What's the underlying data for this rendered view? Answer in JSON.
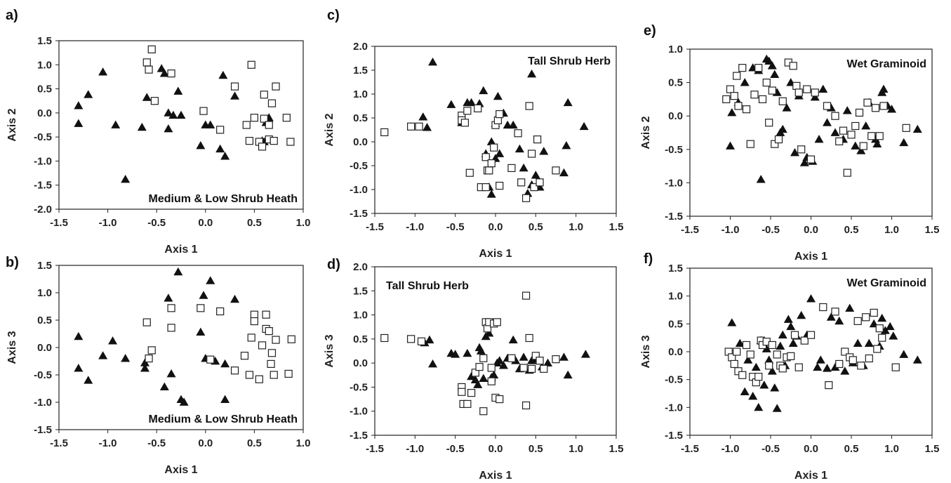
{
  "chart_data": [
    {
      "panel": "a)",
      "type": "scatter",
      "title": "Medium & Low Shrub Heath",
      "xlabel": "Axis 1",
      "ylabel": "Axis 2",
      "xlim": [
        -1.5,
        1.0
      ],
      "ylim": [
        -2.0,
        1.5
      ],
      "xticks": [
        "-1.5",
        "-1.0",
        "-0.5",
        "0.0",
        "0.5",
        "1.0"
      ],
      "yticks": [
        "-2.0",
        "-1.5",
        "-1.0",
        "-0.5",
        "0.0",
        "0.5",
        "1.0",
        "1.5"
      ],
      "title_position": "bottom-right",
      "grid": false,
      "series": [
        {
          "marker": "filled-triangle",
          "x": [
            -1.3,
            -1.2,
            -1.05,
            -1.3,
            -0.92,
            -0.82,
            -0.65,
            -0.6,
            -0.45,
            -0.42,
            -0.38,
            -0.38,
            -0.33,
            -0.28,
            -0.25,
            -0.05,
            0.0,
            0.05,
            0.15,
            0.18,
            0.2,
            0.3,
            0.6,
            0.62,
            0.65,
            0.58
          ],
          "y": [
            0.15,
            0.38,
            0.85,
            -0.22,
            -0.25,
            -1.38,
            -0.3,
            0.32,
            0.92,
            0.82,
            0.0,
            -0.33,
            -0.05,
            0.45,
            -0.05,
            -0.68,
            -0.25,
            -0.25,
            -0.75,
            0.78,
            -0.9,
            0.35,
            -0.6,
            -0.2,
            -0.1,
            -0.58
          ]
        },
        {
          "marker": "open-square",
          "x": [
            -0.6,
            -0.55,
            -0.58,
            -0.52,
            -0.35,
            -0.02,
            0.15,
            0.3,
            0.42,
            0.45,
            0.47,
            0.5,
            0.55,
            0.58,
            0.6,
            0.6,
            0.65,
            0.65,
            0.68,
            0.7,
            0.72,
            0.83,
            0.87
          ],
          "y": [
            1.05,
            1.32,
            0.9,
            0.25,
            0.82,
            0.04,
            -0.35,
            0.55,
            -0.25,
            -0.58,
            1.0,
            -0.1,
            -0.6,
            -0.7,
            0.38,
            -0.12,
            -0.55,
            -0.25,
            0.2,
            -0.58,
            0.55,
            -0.1,
            -0.6
          ]
        }
      ]
    },
    {
      "panel": "b)",
      "type": "scatter",
      "title": "Medium & Low Shrub Heath",
      "xlabel": "Axis 1",
      "ylabel": "Axis 3",
      "xlim": [
        -1.5,
        1.0
      ],
      "ylim": [
        -1.5,
        1.5
      ],
      "xticks": [
        "-1.5",
        "-1.0",
        "-0.5",
        "0.0",
        "0.5",
        "1.0"
      ],
      "yticks": [
        "-1.5",
        "-1.0",
        "-0.5",
        "0.0",
        "0.5",
        "1.0",
        "1.5"
      ],
      "title_position": "bottom-right",
      "grid": false,
      "series": [
        {
          "marker": "filled-triangle",
          "x": [
            -1.3,
            -1.3,
            -1.2,
            -1.05,
            -0.95,
            -0.82,
            -0.62,
            -0.62,
            -0.42,
            -0.38,
            -0.35,
            -0.28,
            -0.25,
            -0.22,
            -0.05,
            -0.02,
            0.0,
            0.05,
            0.1,
            0.2,
            0.3,
            0.2
          ],
          "y": [
            0.2,
            -0.38,
            -0.6,
            -0.15,
            0.12,
            -0.2,
            -0.28,
            -0.38,
            -0.72,
            0.9,
            -0.48,
            1.38,
            -0.95,
            -1.0,
            0.28,
            0.95,
            -0.2,
            1.22,
            -0.25,
            -0.3,
            0.88,
            -0.95
          ]
        },
        {
          "marker": "open-square",
          "x": [
            -0.6,
            -0.55,
            -0.58,
            -0.35,
            -0.35,
            -0.05,
            0.05,
            0.15,
            0.3,
            0.4,
            0.45,
            0.47,
            0.5,
            0.5,
            0.55,
            0.58,
            0.62,
            0.62,
            0.65,
            0.67,
            0.7,
            0.68,
            0.72,
            0.85,
            0.88
          ],
          "y": [
            0.46,
            -0.05,
            -0.2,
            0.72,
            0.36,
            0.72,
            -0.22,
            0.66,
            -0.42,
            -0.15,
            -0.5,
            0.18,
            0.6,
            0.48,
            -0.58,
            0.04,
            0.34,
            0.6,
            0.3,
            -0.3,
            -0.5,
            -0.1,
            0.14,
            -0.48,
            0.15
          ]
        }
      ]
    },
    {
      "panel": "c)",
      "type": "scatter",
      "title": "Tall Shrub Herb",
      "xlabel": "Axis 1",
      "ylabel": "Axis 2",
      "xlim": [
        -1.5,
        1.5
      ],
      "ylim": [
        -1.5,
        2.0
      ],
      "xticks": [
        "-1.5",
        "-1.0",
        "-0.5",
        "0.0",
        "0.5",
        "1.0",
        "1.5"
      ],
      "yticks": [
        "-1.5",
        "-1.0",
        "-0.5",
        "0.0",
        "0.5",
        "1.0",
        "1.5",
        "2.0"
      ],
      "title_position": "top-right",
      "grid": false,
      "series": [
        {
          "marker": "filled-triangle",
          "x": [
            -0.9,
            -0.85,
            -0.78,
            -0.55,
            -0.42,
            -0.35,
            -0.3,
            -0.2,
            -0.15,
            -0.12,
            -0.05,
            -0.05,
            0.0,
            0.03,
            0.05,
            0.1,
            0.15,
            0.22,
            0.3,
            0.35,
            0.4,
            0.45,
            0.45,
            0.5,
            0.55,
            0.6,
            0.85,
            0.88,
            0.9,
            1.1,
            -0.08,
            0.0
          ],
          "y": [
            0.52,
            0.3,
            1.67,
            0.78,
            0.4,
            0.82,
            0.82,
            0.8,
            1.07,
            -0.25,
            0.0,
            -1.1,
            0.38,
            0.95,
            -0.25,
            0.6,
            0.35,
            0.35,
            -0.15,
            -0.55,
            -1.08,
            -0.9,
            1.42,
            -0.7,
            -0.95,
            -0.2,
            -0.65,
            -0.08,
            0.82,
            0.32,
            -0.95,
            -0.35
          ]
        },
        {
          "marker": "open-square",
          "x": [
            -1.38,
            -1.05,
            -0.95,
            -0.42,
            -0.42,
            -0.38,
            -0.35,
            -0.32,
            -0.22,
            -0.18,
            -0.12,
            -0.12,
            -0.1,
            -0.08,
            -0.05,
            -0.02,
            0.0,
            0.03,
            0.05,
            0.05,
            0.2,
            0.28,
            0.32,
            0.38,
            0.42,
            0.45,
            0.48,
            0.52,
            0.55,
            0.75
          ],
          "y": [
            0.2,
            0.32,
            0.32,
            0.55,
            0.45,
            0.4,
            0.65,
            -0.65,
            0.7,
            -0.95,
            -0.95,
            -0.32,
            -0.6,
            -0.6,
            -0.45,
            -0.12,
            0.35,
            0.45,
            0.58,
            -0.92,
            -0.55,
            0.18,
            -0.85,
            -1.18,
            0.75,
            -0.25,
            -0.95,
            0.05,
            -0.85,
            -0.6
          ]
        }
      ]
    },
    {
      "panel": "d)",
      "type": "scatter",
      "title": "Tall Shrub Herb",
      "xlabel": "Axis 1",
      "ylabel": "Axis 3",
      "xlim": [
        -1.5,
        1.5
      ],
      "ylim": [
        -1.5,
        2.0
      ],
      "xticks": [
        "-1.5",
        "-1.0",
        "-0.5",
        "0.0",
        "0.5",
        "1.0",
        "1.5"
      ],
      "yticks": [
        "-1.5",
        "-1.0",
        "-0.5",
        "0.0",
        "0.5",
        "1.0",
        "1.5",
        "2.0"
      ],
      "title_position": "top-left",
      "grid": false,
      "series": [
        {
          "marker": "filled-triangle",
          "x": [
            -0.88,
            -0.82,
            -0.78,
            -0.55,
            -0.5,
            -0.35,
            -0.3,
            -0.25,
            -0.22,
            -0.2,
            -0.18,
            -0.15,
            -0.12,
            -0.08,
            -0.05,
            -0.02,
            0.02,
            0.05,
            0.1,
            0.15,
            0.22,
            0.25,
            0.3,
            0.35,
            0.42,
            0.45,
            0.5,
            0.58,
            0.65,
            0.85,
            0.9,
            1.12
          ],
          "y": [
            0.42,
            0.48,
            -0.02,
            0.2,
            0.18,
            0.2,
            -0.28,
            -0.35,
            -0.45,
            0.32,
            0.25,
            -0.32,
            0.55,
            0.62,
            -0.3,
            -0.25,
            0.0,
            0.05,
            -0.05,
            0.1,
            0.48,
            0.05,
            -0.12,
            0.12,
            -0.15,
            0.05,
            0.08,
            -0.08,
            0.0,
            0.12,
            -0.25,
            0.18
          ]
        },
        {
          "marker": "open-square",
          "x": [
            -1.38,
            -1.05,
            -0.92,
            -0.42,
            -0.42,
            -0.4,
            -0.35,
            -0.3,
            -0.25,
            -0.2,
            -0.15,
            -0.15,
            -0.12,
            -0.1,
            -0.08,
            -0.05,
            -0.05,
            -0.02,
            0.0,
            0.02,
            0.05,
            0.2,
            0.35,
            0.38,
            0.38,
            0.42,
            0.45,
            0.5,
            0.55,
            0.6,
            0.75
          ],
          "y": [
            0.52,
            0.5,
            0.45,
            -0.5,
            -0.6,
            -0.85,
            -0.85,
            -0.62,
            -0.2,
            -0.08,
            -1.0,
            0.1,
            0.85,
            0.72,
            0.85,
            -0.1,
            -0.38,
            0.82,
            -0.72,
            0.85,
            -0.75,
            0.1,
            -0.1,
            1.4,
            -0.88,
            0.52,
            -0.12,
            0.15,
            0.05,
            -0.12,
            0.08
          ]
        }
      ]
    },
    {
      "panel": "e)",
      "type": "scatter",
      "title": "Wet Graminoid",
      "xlabel": "Axis 1",
      "ylabel": "Axis 2",
      "xlim": [
        -1.5,
        1.5
      ],
      "ylim": [
        -1.5,
        1.0
      ],
      "xticks": [
        "-1.5",
        "-1.0",
        "-0.5",
        "0.0",
        "0.5",
        "1.0",
        "1.5"
      ],
      "yticks": [
        "-1.5",
        "-1.0",
        "-0.5",
        "0.0",
        "0.5",
        "1.0"
      ],
      "title_position": "top-right",
      "grid": false,
      "series": [
        {
          "marker": "filled-triangle",
          "x": [
            -1.0,
            -0.98,
            -0.9,
            -0.82,
            -0.72,
            -0.65,
            -0.62,
            -0.55,
            -0.52,
            -0.48,
            -0.45,
            -0.42,
            -0.38,
            -0.35,
            -0.3,
            -0.25,
            -0.2,
            -0.15,
            -0.08,
            -0.05,
            0.02,
            0.05,
            0.1,
            0.15,
            0.2,
            0.25,
            0.3,
            0.4,
            0.45,
            0.55,
            0.62,
            0.68,
            0.72,
            0.8,
            0.82,
            0.88,
            0.9,
            0.95,
            1.0,
            1.15,
            1.32
          ],
          "y": [
            -0.45,
            0.05,
            0.2,
            0.5,
            0.72,
            0.68,
            -0.95,
            0.85,
            0.82,
            0.75,
            0.62,
            0.35,
            -0.25,
            -0.2,
            0.12,
            0.5,
            -0.55,
            0.3,
            -0.7,
            -0.62,
            -0.68,
            0.28,
            -0.35,
            0.4,
            -0.1,
            0.12,
            -0.25,
            -0.35,
            0.08,
            -0.45,
            -0.52,
            -0.15,
            0.2,
            -0.35,
            -0.42,
            0.35,
            0.4,
            0.15,
            0.1,
            -0.4,
            -0.2
          ]
        },
        {
          "marker": "open-square",
          "x": [
            -1.05,
            -1.0,
            -0.95,
            -0.92,
            -0.9,
            -0.85,
            -0.8,
            -0.75,
            -0.7,
            -0.65,
            -0.6,
            -0.55,
            -0.52,
            -0.48,
            -0.45,
            -0.4,
            -0.35,
            -0.28,
            -0.22,
            -0.18,
            -0.15,
            -0.12,
            -0.05,
            0.0,
            0.05,
            0.2,
            0.3,
            0.35,
            0.4,
            0.45,
            0.5,
            0.55,
            0.6,
            0.65,
            0.7,
            0.75,
            0.8,
            0.85,
            0.9,
            1.18
          ],
          "y": [
            0.25,
            0.4,
            0.3,
            0.6,
            0.15,
            0.72,
            0.1,
            -0.42,
            0.32,
            0.72,
            0.25,
            0.5,
            -0.1,
            0.38,
            -0.42,
            -0.35,
            0.22,
            0.8,
            0.75,
            0.45,
            0.35,
            -0.5,
            0.4,
            -0.65,
            0.35,
            0.15,
            0.0,
            -0.38,
            -0.22,
            -0.85,
            -0.28,
            -0.15,
            0.05,
            -0.45,
            0.2,
            -0.3,
            0.12,
            -0.3,
            0.15,
            -0.18
          ]
        }
      ]
    },
    {
      "panel": "f)",
      "type": "scatter",
      "title": "Wet Graminoid",
      "xlabel": "Axis 1",
      "ylabel": "Axis 3",
      "xlim": [
        -1.5,
        1.5
      ],
      "ylim": [
        -1.5,
        1.5
      ],
      "xticks": [
        "-1.5",
        "-1.0",
        "-0.5",
        "0.0",
        "0.5",
        "1.0",
        "1.5"
      ],
      "yticks": [
        "-1.5",
        "-1.0",
        "-0.5",
        "0.0",
        "0.5",
        "1.0",
        "1.5"
      ],
      "title_position": "top-right",
      "grid": false,
      "series": [
        {
          "marker": "filled-triangle",
          "x": [
            -0.98,
            -0.88,
            -0.82,
            -0.78,
            -0.72,
            -0.68,
            -0.65,
            -0.62,
            -0.58,
            -0.55,
            -0.52,
            -0.48,
            -0.45,
            -0.42,
            -0.38,
            -0.35,
            -0.32,
            -0.28,
            -0.25,
            -0.22,
            -0.18,
            -0.12,
            -0.05,
            0.0,
            0.08,
            0.12,
            0.2,
            0.25,
            0.3,
            0.35,
            0.42,
            0.48,
            0.52,
            0.58,
            0.65,
            0.72,
            0.78,
            0.85,
            0.88,
            0.92,
            0.98,
            1.02,
            1.15,
            1.32
          ],
          "y": [
            0.52,
            0.15,
            -0.72,
            -0.15,
            -0.8,
            -0.28,
            -1.0,
            0.2,
            -0.6,
            0.05,
            -0.15,
            -0.35,
            -0.65,
            -1.02,
            0.1,
            0.3,
            -0.25,
            0.58,
            0.45,
            0.15,
            0.28,
            0.65,
            0.3,
            0.95,
            -0.28,
            -0.15,
            -0.3,
            0.62,
            -0.28,
            0.55,
            -0.35,
            0.78,
            -0.2,
            0.15,
            -0.25,
            0.15,
            0.5,
            0.1,
            0.6,
            0.38,
            0.45,
            0.28,
            -0.05,
            -0.15
          ]
        },
        {
          "marker": "open-square",
          "x": [
            -1.02,
            -0.98,
            -0.95,
            -0.92,
            -0.9,
            -0.85,
            -0.8,
            -0.75,
            -0.72,
            -0.68,
            -0.65,
            -0.62,
            -0.6,
            -0.55,
            -0.52,
            -0.48,
            -0.42,
            -0.38,
            -0.35,
            -0.3,
            -0.25,
            -0.2,
            -0.15,
            -0.08,
            0.0,
            0.15,
            0.22,
            0.3,
            0.35,
            0.42,
            0.48,
            0.52,
            0.58,
            0.62,
            0.68,
            0.72,
            0.78,
            0.82,
            0.85,
            0.88,
            1.05
          ],
          "y": [
            0.0,
            -0.1,
            -0.22,
            0.0,
            -0.35,
            -0.42,
            0.12,
            -0.05,
            -0.45,
            -0.55,
            -0.45,
            0.2,
            0.12,
            0.18,
            -0.25,
            0.12,
            -0.05,
            -0.25,
            -0.3,
            -0.1,
            -0.08,
            0.3,
            -0.28,
            0.2,
            0.3,
            0.8,
            -0.6,
            0.72,
            -0.22,
            0.0,
            -0.1,
            -0.15,
            0.55,
            -0.25,
            0.62,
            -0.12,
            0.7,
            0.05,
            0.42,
            0.25,
            -0.28
          ]
        }
      ]
    }
  ]
}
